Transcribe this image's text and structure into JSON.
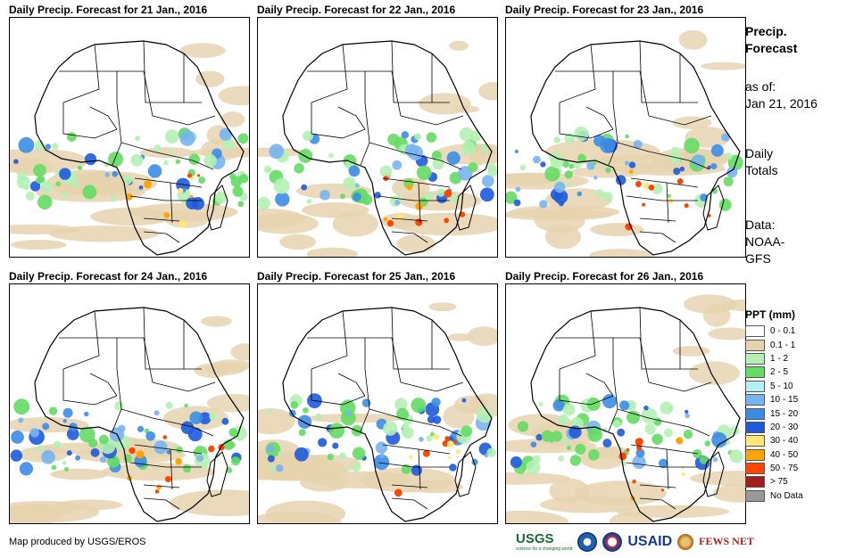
{
  "panels": [
    {
      "title": "Daily Precip. Forecast for 21 Jan., 2016"
    },
    {
      "title": "Daily Precip. Forecast for 22 Jan., 2016"
    },
    {
      "title": "Daily Precip. Forecast for 23 Jan., 2016"
    },
    {
      "title": "Daily Precip. Forecast for 24 Jan., 2016"
    },
    {
      "title": "Daily Precip. Forecast for 25 Jan., 2016"
    },
    {
      "title": "Daily Precip. Forecast for 26 Jan., 2016"
    }
  ],
  "side": {
    "title_line1": "Precip.",
    "title_line2": "Forecast",
    "asof_label": "as of:",
    "asof_date": "Jan 21, 2016",
    "totals_line1": "Daily",
    "totals_line2": "Totals",
    "data_line1": "Data:",
    "data_line2": "NOAA-",
    "data_line3": "GFS"
  },
  "legend": {
    "title": "PPT (mm)",
    "items": [
      {
        "label": "0 - 0.1",
        "color": "#ffffff"
      },
      {
        "label": "0.1 - 1",
        "color": "#e6d2ae"
      },
      {
        "label": "1 - 2",
        "color": "#b4f0b4"
      },
      {
        "label": "2 - 5",
        "color": "#64dc64"
      },
      {
        "label": "5 - 10",
        "color": "#b4f0f0"
      },
      {
        "label": "10 - 15",
        "color": "#78b4f0"
      },
      {
        "label": "15 - 20",
        "color": "#3c8ce6"
      },
      {
        "label": "20 - 30",
        "color": "#1e5adc"
      },
      {
        "label": "30 - 40",
        "color": "#ffe678"
      },
      {
        "label": "40 - 50",
        "color": "#ffa500"
      },
      {
        "label": "50 - 75",
        "color": "#ff4600"
      },
      {
        "label": "> 75",
        "color": "#a01e1e"
      },
      {
        "label": "No Data",
        "color": "#999999"
      }
    ]
  },
  "footer": {
    "credit": "Map produced by USGS/EROS",
    "usgs": "USGS",
    "usgs_tagline": "science for a changing world",
    "usaid": "USAID",
    "fews": "FEWS NET"
  }
}
